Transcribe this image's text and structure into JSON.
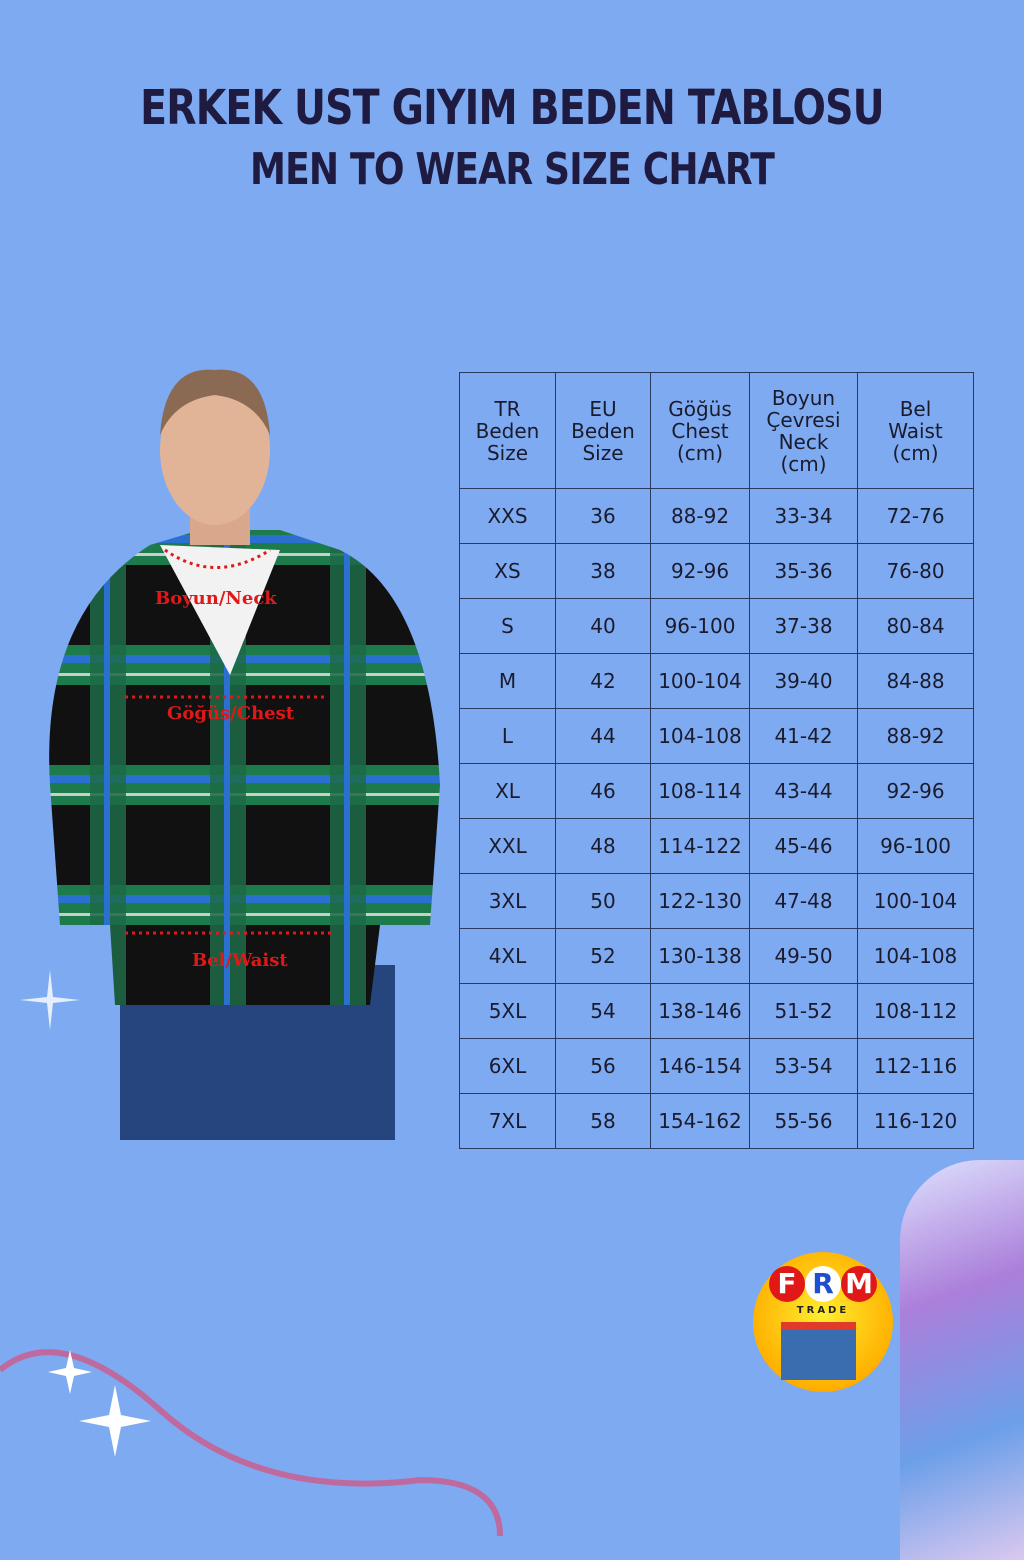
{
  "title": {
    "line1": "ERKEK UST GIYIM BEDEN TABLOSU",
    "line2": "MEN TO WEAR SIZE CHART"
  },
  "colors": {
    "background": "#7eaaf1",
    "title": "#1e1a40",
    "measure_label": "#e01818"
  },
  "measurements": {
    "neck": "Boyun/Neck",
    "chest": "Göğüs/Chest",
    "waist": "Bel/Waist"
  },
  "table": {
    "headers": [
      [
        "TR",
        "Beden",
        "Size"
      ],
      [
        "EU",
        "Beden",
        "Size"
      ],
      [
        "Göğüs",
        "Chest",
        "(cm)"
      ],
      [
        "Boyun",
        "Çevresi",
        "Neck",
        "(cm)"
      ],
      [
        "Bel",
        "Waist",
        "(cm)"
      ]
    ],
    "rows": [
      [
        "XXS",
        "36",
        "88-92",
        "33-34",
        "72-76"
      ],
      [
        "XS",
        "38",
        "92-96",
        "35-36",
        "76-80"
      ],
      [
        "S",
        "40",
        "96-100",
        "37-38",
        "80-84"
      ],
      [
        "M",
        "42",
        "100-104",
        "39-40",
        "84-88"
      ],
      [
        "L",
        "44",
        "104-108",
        "41-42",
        "88-92"
      ],
      [
        "XL",
        "46",
        "108-114",
        "43-44",
        "92-96"
      ],
      [
        "XXL",
        "48",
        "114-122",
        "45-46",
        "96-100"
      ],
      [
        "3XL",
        "50",
        "122-130",
        "47-48",
        "100-104"
      ],
      [
        "4XL",
        "52",
        "130-138",
        "49-50",
        "104-108"
      ],
      [
        "5XL",
        "54",
        "138-146",
        "51-52",
        "108-112"
      ],
      [
        "6XL",
        "56",
        "146-154",
        "53-54",
        "112-116"
      ],
      [
        "7XL",
        "58",
        "154-162",
        "55-56",
        "116-120"
      ]
    ]
  },
  "logo": {
    "letters": [
      "F",
      "R",
      "M"
    ],
    "subtitle": "TRADE"
  }
}
